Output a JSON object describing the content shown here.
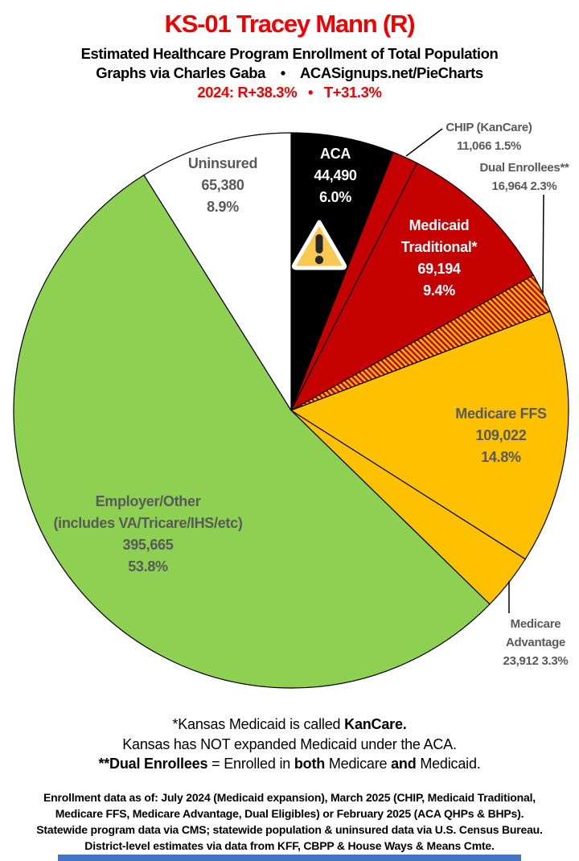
{
  "header": {
    "title": "KS-01 Tracey Mann (R)",
    "title_color": "#f20000",
    "subtitle": "Estimated Healthcare Program Enrollment of Total Population",
    "credit_left": "Graphs via Charles Gaba",
    "bullet": "•",
    "credit_site": "ACASignups.net/PieCharts",
    "partisan_left": "2024: R+38.3%",
    "partisan_right": "T+31.3%",
    "partisan_color": "#f20000"
  },
  "chart_data": {
    "type": "pie",
    "title": "Estimated Healthcare Program Enrollment of Total Population",
    "start_angle_deg": 0,
    "direction": "clockwise",
    "outline_color": "#000000",
    "hatch": {
      "background": "#fdc101",
      "stripe": "#c40000"
    },
    "slices": [
      {
        "id": "aca",
        "label": "ACA",
        "value": 44490,
        "pct": 6.0,
        "fill": "#000000"
      },
      {
        "id": "chip",
        "label": "CHIP (KanCare)",
        "value": 11066,
        "pct": 1.5,
        "fill": "#c40000"
      },
      {
        "id": "medicaid",
        "label": "Medicaid Traditional*",
        "value": 69194,
        "pct": 9.4,
        "fill": "#c40000"
      },
      {
        "id": "dual",
        "label": "Dual Enrollees**",
        "value": 16964,
        "pct": 2.3,
        "fill": "hatch"
      },
      {
        "id": "ffs",
        "label": "Medicare FFS",
        "value": 109022,
        "pct": 14.8,
        "fill": "#fdc101"
      },
      {
        "id": "madv",
        "label": "Medicare Advantage",
        "value": 23912,
        "pct": 3.3,
        "fill": "#fdc101"
      },
      {
        "id": "employer",
        "label": "Employer/Other (includes VA/Tricare/IHS/etc)",
        "value": 395665,
        "pct": 53.8,
        "fill": "#8ed152"
      },
      {
        "id": "uninsured",
        "label": "Uninsured",
        "value": 65380,
        "pct": 8.9,
        "fill": "#ffffff"
      }
    ]
  },
  "labels": {
    "uninsured": [
      "Uninsured",
      "65,380",
      "8.9%"
    ],
    "aca": [
      "ACA",
      "44,490",
      "6.0%"
    ],
    "chip": [
      "CHIP (KanCare)",
      "11,066 1.5%"
    ],
    "dual": [
      "Dual Enrollees**",
      "16,964 2.3%"
    ],
    "medicaid": [
      "Medicaid",
      "Traditional*",
      "69,194",
      "9.4%"
    ],
    "ffs": [
      "Medicare FFS",
      "109,022",
      "14.8%"
    ],
    "madv": [
      "Medicare",
      "Advantage",
      "23,912 3.3%"
    ],
    "employer": [
      "Employer/Other",
      "(includes VA/Tricare/IHS/etc)",
      "395,665",
      "53.8%"
    ]
  },
  "notes": {
    "l1_pre": "*Kansas Medicaid is called ",
    "l1_bold": "KanCare.",
    "l2": "Kansas has NOT expanded Medicaid under the ACA.",
    "l3_b1": "**Dual Enrollees",
    "l3_m1": " = Enrolled in ",
    "l3_b2": "both",
    "l3_m2": " Medicare ",
    "l3_b3": "and",
    "l3_end": " Medicaid."
  },
  "sources": [
    "Enrollment data as of: July 2024 (Medicaid expansion), March 2025 (CHIP, Medicaid Traditional,",
    "Medicare FFS, Medicare Advantage, Dual Eligibles) or February 2025 (ACA QHPs & BHPs).",
    "Statewide program data via CMS; statewide population & uninsured data via U.S. Census Bureau.",
    "District-level estimates via data from KFF, CBPP & House Ways & Means Cmte."
  ],
  "footer_bar_color": "#4472c4"
}
